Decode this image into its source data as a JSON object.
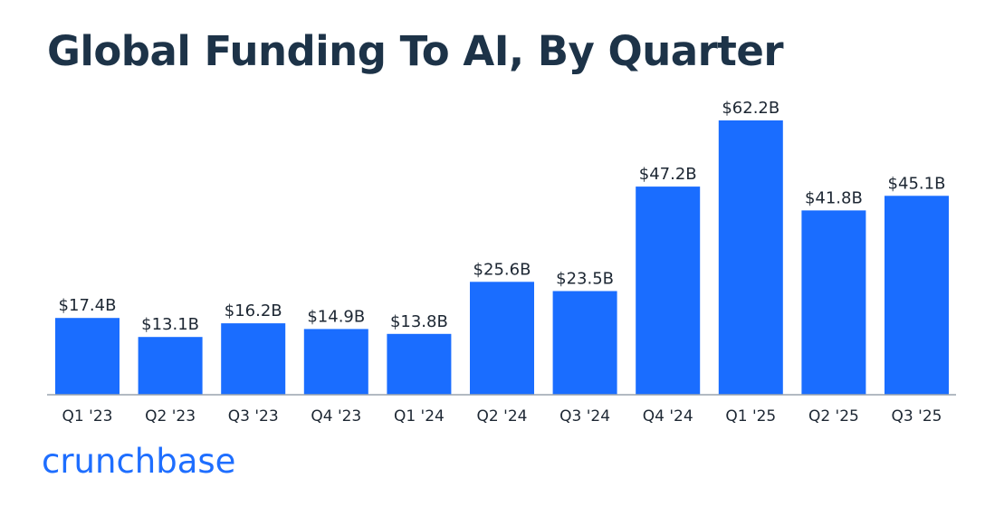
{
  "chart_data": {
    "type": "bar",
    "title": "Global Funding To AI, By Quarter",
    "categories": [
      "Q1 '23",
      "Q2 '23",
      "Q3 '23",
      "Q4 '23",
      "Q1 '24",
      "Q2 '24",
      "Q3 '24",
      "Q4 '24",
      "Q1 '25",
      "Q2 '25",
      "Q3 '25"
    ],
    "values": [
      17.4,
      13.1,
      16.2,
      14.9,
      13.8,
      25.6,
      23.5,
      47.2,
      62.2,
      41.8,
      45.1
    ],
    "value_labels": [
      "$17.4B",
      "$13.1B",
      "$16.2B",
      "$14.9B",
      "$13.8B",
      "$25.6B",
      "$23.5B",
      "$47.2B",
      "$62.2B",
      "$41.8B",
      "$45.1B"
    ],
    "xlabel": "",
    "ylabel": "",
    "ylim": [
      0,
      62.2
    ],
    "grid": false,
    "legend": "none",
    "bar_color": "#1a6dff",
    "axis_color": "#9aa3ad",
    "label_color": "#1d2733",
    "title_color": "#1d3348"
  },
  "branding": {
    "logo_text": "crunchbase",
    "logo_color": "#1e6eff"
  }
}
